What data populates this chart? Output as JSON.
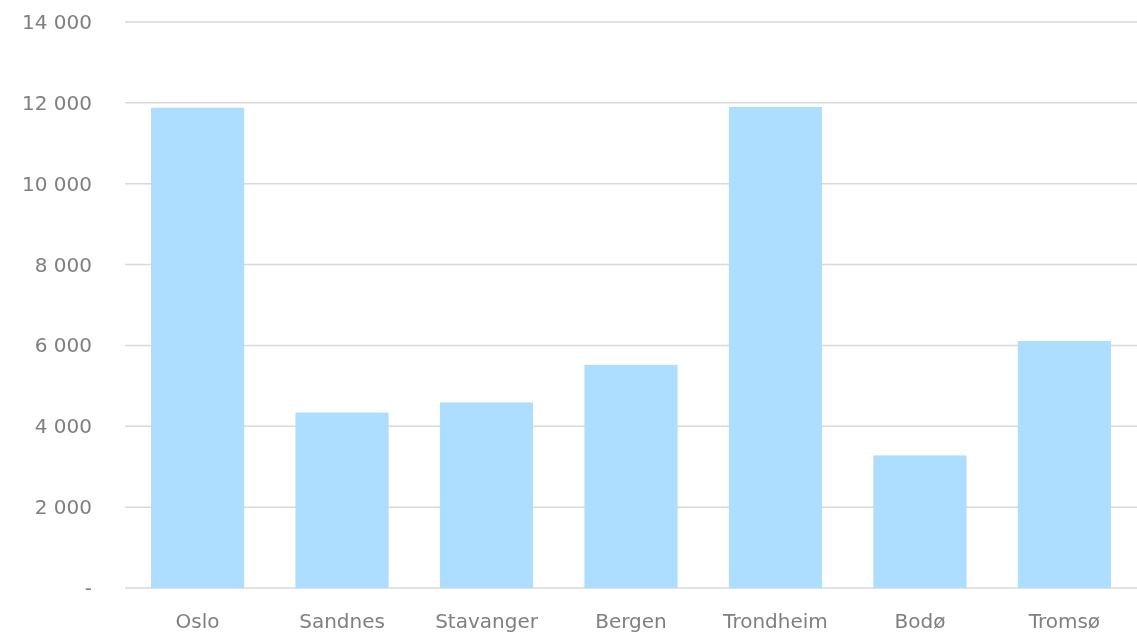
{
  "chart_data": {
    "type": "bar",
    "categories": [
      "Oslo",
      "Sandnes",
      "Stavanger",
      "Bergen",
      "Trondheim",
      "Bodø",
      "Tromsø"
    ],
    "values": [
      11880,
      4340,
      4590,
      5520,
      11900,
      3280,
      6110
    ],
    "color": "#addeff",
    "ylim": [
      0,
      14000
    ],
    "yticks": [
      {
        "value": 0,
        "label": "-"
      },
      {
        "value": 2000,
        "label": "2 000"
      },
      {
        "value": 4000,
        "label": "4 000"
      },
      {
        "value": 6000,
        "label": "6 000"
      },
      {
        "value": 8000,
        "label": "8 000"
      },
      {
        "value": 10000,
        "label": "10 000"
      },
      {
        "value": 12000,
        "label": "12 000"
      },
      {
        "value": 14000,
        "label": "14 000"
      }
    ],
    "grid": "y"
  }
}
